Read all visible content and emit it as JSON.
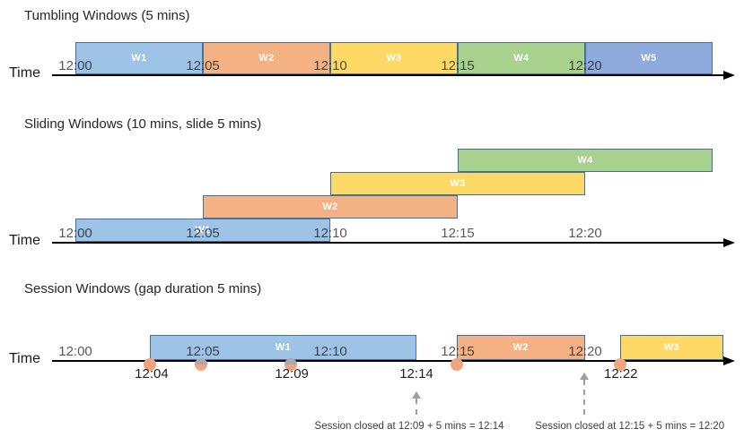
{
  "palette": {
    "blue": "#9DC3E6",
    "orange": "#F4B183",
    "yellow": "#FFD966",
    "green": "#A9D18E",
    "periwinkle": "#8FAADC",
    "window_border": "#41719C",
    "axis_color": "#000000",
    "event_dot": "#F2A47C",
    "event_dot_shaded": "#A9ABAD",
    "arrow_gray": "#9E9E9E"
  },
  "axis": {
    "ticks": [
      {
        "label": "12:00",
        "t": 0
      },
      {
        "label": "12:05",
        "t": 5
      },
      {
        "label": "12:10",
        "t": 10
      },
      {
        "label": "12:15",
        "t": 15
      },
      {
        "label": "12:20",
        "t": 20
      }
    ]
  },
  "sections": [
    {
      "title": "Tumbling Windows (5 mins)",
      "axis_label": "Time",
      "windows": [
        {
          "label": "W1",
          "start": "12:00",
          "end": "12:05",
          "t0": 0,
          "t1": 5,
          "color": "blue"
        },
        {
          "label": "W2",
          "start": "12:05",
          "end": "12:10",
          "t0": 5,
          "t1": 10,
          "color": "orange"
        },
        {
          "label": "W3",
          "start": "12:10",
          "end": "12:15",
          "t0": 10,
          "t1": 15,
          "color": "yellow"
        },
        {
          "label": "W4",
          "start": "12:15",
          "end": "12:20",
          "t0": 15,
          "t1": 20,
          "color": "green"
        },
        {
          "label": "W5",
          "start": "12:20",
          "end": "12:25",
          "t0": 20,
          "t1": 25,
          "color": "periwinkle"
        }
      ]
    },
    {
      "title": "Sliding Windows (10 mins, slide 5 mins)",
      "axis_label": "Time",
      "windows": [
        {
          "label": "W1",
          "start": "12:00",
          "end": "12:10",
          "t0": 0,
          "t1": 10,
          "row": 0,
          "color": "blue"
        },
        {
          "label": "W2",
          "start": "12:05",
          "end": "12:15",
          "t0": 5,
          "t1": 15,
          "row": 1,
          "color": "orange"
        },
        {
          "label": "W3",
          "start": "12:10",
          "end": "12:20",
          "t0": 10,
          "t1": 20,
          "row": 2,
          "color": "yellow"
        },
        {
          "label": "W4",
          "start": "12:15",
          "end": "12:25",
          "t0": 15,
          "t1": 25,
          "row": 3,
          "color": "green"
        }
      ]
    },
    {
      "title": "Session Windows (gap duration 5 mins)",
      "axis_label": "Time",
      "windows": [
        {
          "label": "W1",
          "start": "12:04",
          "end": "12:14",
          "t0": 2.92,
          "t1": 13.38,
          "color": "blue"
        },
        {
          "label": "W2",
          "start": "12:15",
          "end": "12:20",
          "t0": 14.95,
          "t1": 20.0,
          "color": "orange"
        },
        {
          "label": "W3",
          "start": "12:22",
          "end": "12:25",
          "t0": 21.37,
          "t1": 25.42,
          "color": "yellow"
        }
      ],
      "events": [
        {
          "t": 2.92,
          "shaded": false
        },
        {
          "t": 4.93,
          "shaded": true
        },
        {
          "t": 8.45,
          "shaded": true
        },
        {
          "t": 14.95,
          "shaded": false
        },
        {
          "t": 21.37,
          "shaded": false
        }
      ],
      "below_labels": [
        {
          "text": "12:04",
          "t": 2.99
        },
        {
          "text": "12:09",
          "t": 8.49
        },
        {
          "text": "12:14",
          "t": 13.38
        },
        {
          "text": "12:22",
          "t": 21.4
        }
      ],
      "close_arrows": [
        {
          "t": 13.38,
          "height": "short"
        },
        {
          "t": 19.97,
          "height": "tall"
        }
      ],
      "annotations": [
        {
          "text": "Session closed at 12:09 + 5 mins = 12:14",
          "t": 13.1
        },
        {
          "text": "Session closed at 12:15 + 5 mins = 12:20",
          "t": 21.75
        }
      ]
    }
  ]
}
